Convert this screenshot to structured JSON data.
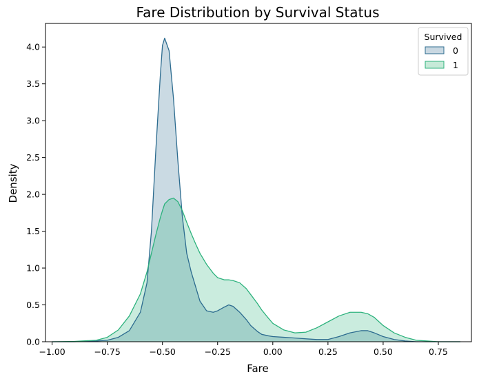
{
  "chart_data": {
    "type": "area",
    "title": "Fare Distribution by Survival Status",
    "xlabel": "Fare",
    "ylabel": "Density",
    "xlim": [
      -1.03,
      0.9
    ],
    "ylim": [
      0,
      4.32
    ],
    "xticks": [
      -1.0,
      -0.75,
      -0.5,
      -0.25,
      0.0,
      0.25,
      0.5,
      0.75
    ],
    "xtick_labels": [
      "−1.00",
      "−0.75",
      "−0.50",
      "−0.25",
      "0.00",
      "0.25",
      "0.50",
      "0.75"
    ],
    "yticks": [
      0.0,
      0.5,
      1.0,
      1.5,
      2.0,
      2.5,
      3.0,
      3.5,
      4.0
    ],
    "ytick_labels": [
      "0.0",
      "0.5",
      "1.0",
      "1.5",
      "2.0",
      "2.5",
      "3.0",
      "3.5",
      "4.0"
    ],
    "grid": false,
    "legend": {
      "title": "Survived",
      "placement": "top-right"
    },
    "series": [
      {
        "name": "0",
        "color": "#2c6b8f",
        "fill": "#c9d8e2",
        "x": [
          -1.0,
          -0.9,
          -0.8,
          -0.75,
          -0.7,
          -0.65,
          -0.6,
          -0.57,
          -0.55,
          -0.53,
          -0.51,
          -0.5,
          -0.49,
          -0.47,
          -0.45,
          -0.43,
          -0.41,
          -0.39,
          -0.37,
          -0.35,
          -0.33,
          -0.3,
          -0.27,
          -0.25,
          -0.22,
          -0.2,
          -0.18,
          -0.15,
          -0.12,
          -0.1,
          -0.07,
          -0.05,
          -0.02,
          0.0,
          0.05,
          0.1,
          0.15,
          0.2,
          0.25,
          0.3,
          0.35,
          0.4,
          0.43,
          0.46,
          0.5,
          0.55,
          0.6,
          0.65,
          0.7,
          0.75,
          0.8,
          0.85
        ],
        "y": [
          0.0,
          0.0,
          0.01,
          0.02,
          0.06,
          0.15,
          0.4,
          0.8,
          1.5,
          2.6,
          3.6,
          4.02,
          4.12,
          3.95,
          3.3,
          2.45,
          1.7,
          1.2,
          0.95,
          0.75,
          0.55,
          0.42,
          0.4,
          0.42,
          0.47,
          0.5,
          0.48,
          0.4,
          0.3,
          0.22,
          0.14,
          0.1,
          0.08,
          0.07,
          0.06,
          0.05,
          0.04,
          0.03,
          0.03,
          0.07,
          0.12,
          0.15,
          0.15,
          0.12,
          0.07,
          0.03,
          0.01,
          0.0,
          0.0,
          0.0,
          0.0,
          0.0
        ]
      },
      {
        "name": "1",
        "color": "#2db27d",
        "fill": "#c6ead8",
        "x": [
          -1.0,
          -0.9,
          -0.8,
          -0.75,
          -0.7,
          -0.65,
          -0.6,
          -0.57,
          -0.55,
          -0.53,
          -0.51,
          -0.5,
          -0.49,
          -0.47,
          -0.45,
          -0.43,
          -0.41,
          -0.39,
          -0.37,
          -0.35,
          -0.33,
          -0.3,
          -0.27,
          -0.25,
          -0.22,
          -0.2,
          -0.18,
          -0.15,
          -0.12,
          -0.1,
          -0.07,
          -0.05,
          -0.02,
          0.0,
          0.05,
          0.1,
          0.15,
          0.2,
          0.25,
          0.3,
          0.35,
          0.4,
          0.43,
          0.46,
          0.5,
          0.55,
          0.6,
          0.65,
          0.7,
          0.75,
          0.8,
          0.85
        ],
        "y": [
          0.0,
          0.005,
          0.02,
          0.06,
          0.16,
          0.35,
          0.65,
          0.95,
          1.2,
          1.45,
          1.68,
          1.78,
          1.87,
          1.93,
          1.95,
          1.9,
          1.78,
          1.62,
          1.47,
          1.33,
          1.2,
          1.05,
          0.93,
          0.87,
          0.84,
          0.84,
          0.83,
          0.8,
          0.72,
          0.64,
          0.52,
          0.43,
          0.32,
          0.25,
          0.16,
          0.12,
          0.13,
          0.19,
          0.27,
          0.35,
          0.4,
          0.4,
          0.38,
          0.33,
          0.22,
          0.12,
          0.06,
          0.02,
          0.01,
          0.0,
          0.0,
          0.0
        ]
      }
    ]
  }
}
